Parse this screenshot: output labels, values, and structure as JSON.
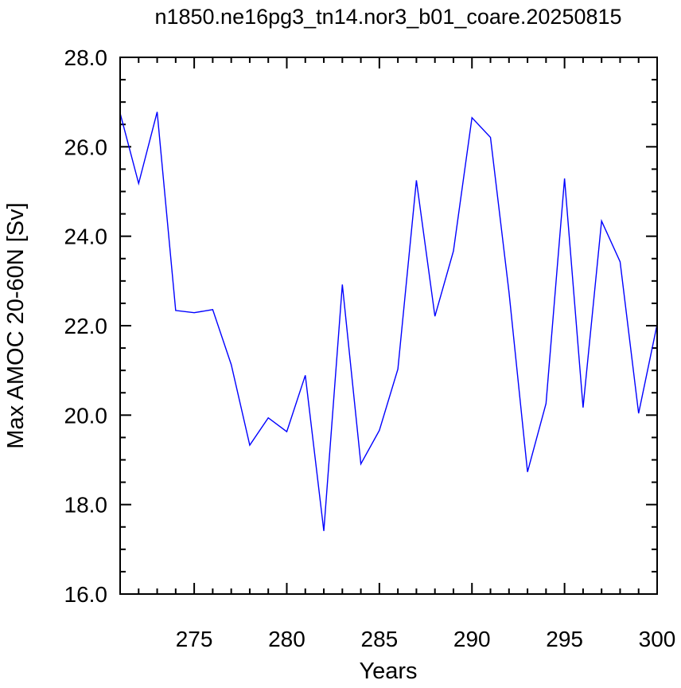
{
  "chart_data": {
    "type": "line",
    "title": "n1850.ne16pg3_tn14.nor3_b01_coare.20250815",
    "xlabel": "Years",
    "ylabel": "Max AMOC 20-60N [Sv]",
    "xlim": [
      271,
      300
    ],
    "ylim": [
      16.0,
      28.0
    ],
    "x_ticks": [
      275,
      280,
      285,
      290,
      295,
      300
    ],
    "y_ticks": [
      16.0,
      18.0,
      20.0,
      22.0,
      24.0,
      26.0,
      28.0
    ],
    "x_tick_labels": [
      "275",
      "280",
      "285",
      "290",
      "295",
      "300"
    ],
    "y_tick_labels": [
      "16.0",
      "18.0",
      "20.0",
      "22.0",
      "24.0",
      "26.0",
      "28.0"
    ],
    "grid": false,
    "series": [
      {
        "color": "#0000ff",
        "x": [
          271,
          272,
          273,
          274,
          275,
          276,
          277,
          278,
          279,
          280,
          281,
          282,
          283,
          284,
          285,
          286,
          287,
          288,
          289,
          290,
          291,
          292,
          293,
          294,
          295,
          296,
          297,
          298,
          299,
          300
        ],
        "values": [
          26.75,
          25.18,
          26.78,
          22.34,
          22.29,
          22.36,
          21.13,
          19.33,
          19.94,
          19.63,
          20.89,
          17.41,
          22.92,
          18.91,
          19.66,
          21.03,
          25.25,
          22.21,
          23.67,
          26.65,
          26.21,
          22.75,
          18.73,
          20.26,
          25.29,
          20.17,
          24.34,
          23.43,
          20.04,
          22.03
        ]
      }
    ]
  }
}
